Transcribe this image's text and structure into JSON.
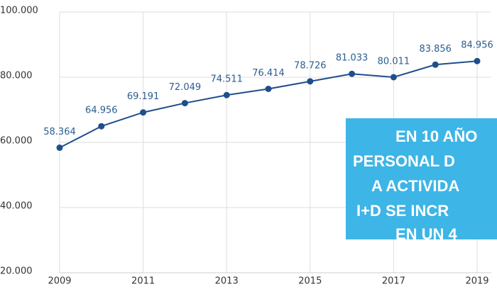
{
  "chart_data": {
    "type": "line",
    "x": [
      2009,
      2010,
      2011,
      2012,
      2013,
      2014,
      2015,
      2016,
      2017,
      2018,
      2019
    ],
    "values": [
      58364,
      64956,
      69191,
      72049,
      74511,
      76414,
      78726,
      81033,
      80011,
      83856,
      84956
    ],
    "value_labels": [
      "58.364",
      "64.956",
      "69.191",
      "72.049",
      "74.511",
      "76.414",
      "78.726",
      "81.033",
      "80.011",
      "83.856",
      "84.956"
    ],
    "color": "#1f4e8c",
    "xlim": [
      2009,
      2019
    ],
    "xticks": [
      2009,
      2011,
      2013,
      2015,
      2017,
      2019
    ],
    "ylim": [
      20000,
      100000
    ],
    "yticks": [
      {
        "value": 20000,
        "label": "20.000"
      },
      {
        "value": 40000,
        "label": "40.000"
      },
      {
        "value": 60000,
        "label": "60.000"
      },
      {
        "value": 80000,
        "label": "80.000"
      },
      {
        "value": 100000,
        "label": "100.000"
      }
    ],
    "grid": true,
    "annotation": {
      "color": "#3db5e6",
      "lines": [
        "EN 10 AÑO",
        "PERSONAL D",
        "A ACTIVIDA",
        "I+D SE INCR",
        "EN UN 4"
      ]
    }
  }
}
